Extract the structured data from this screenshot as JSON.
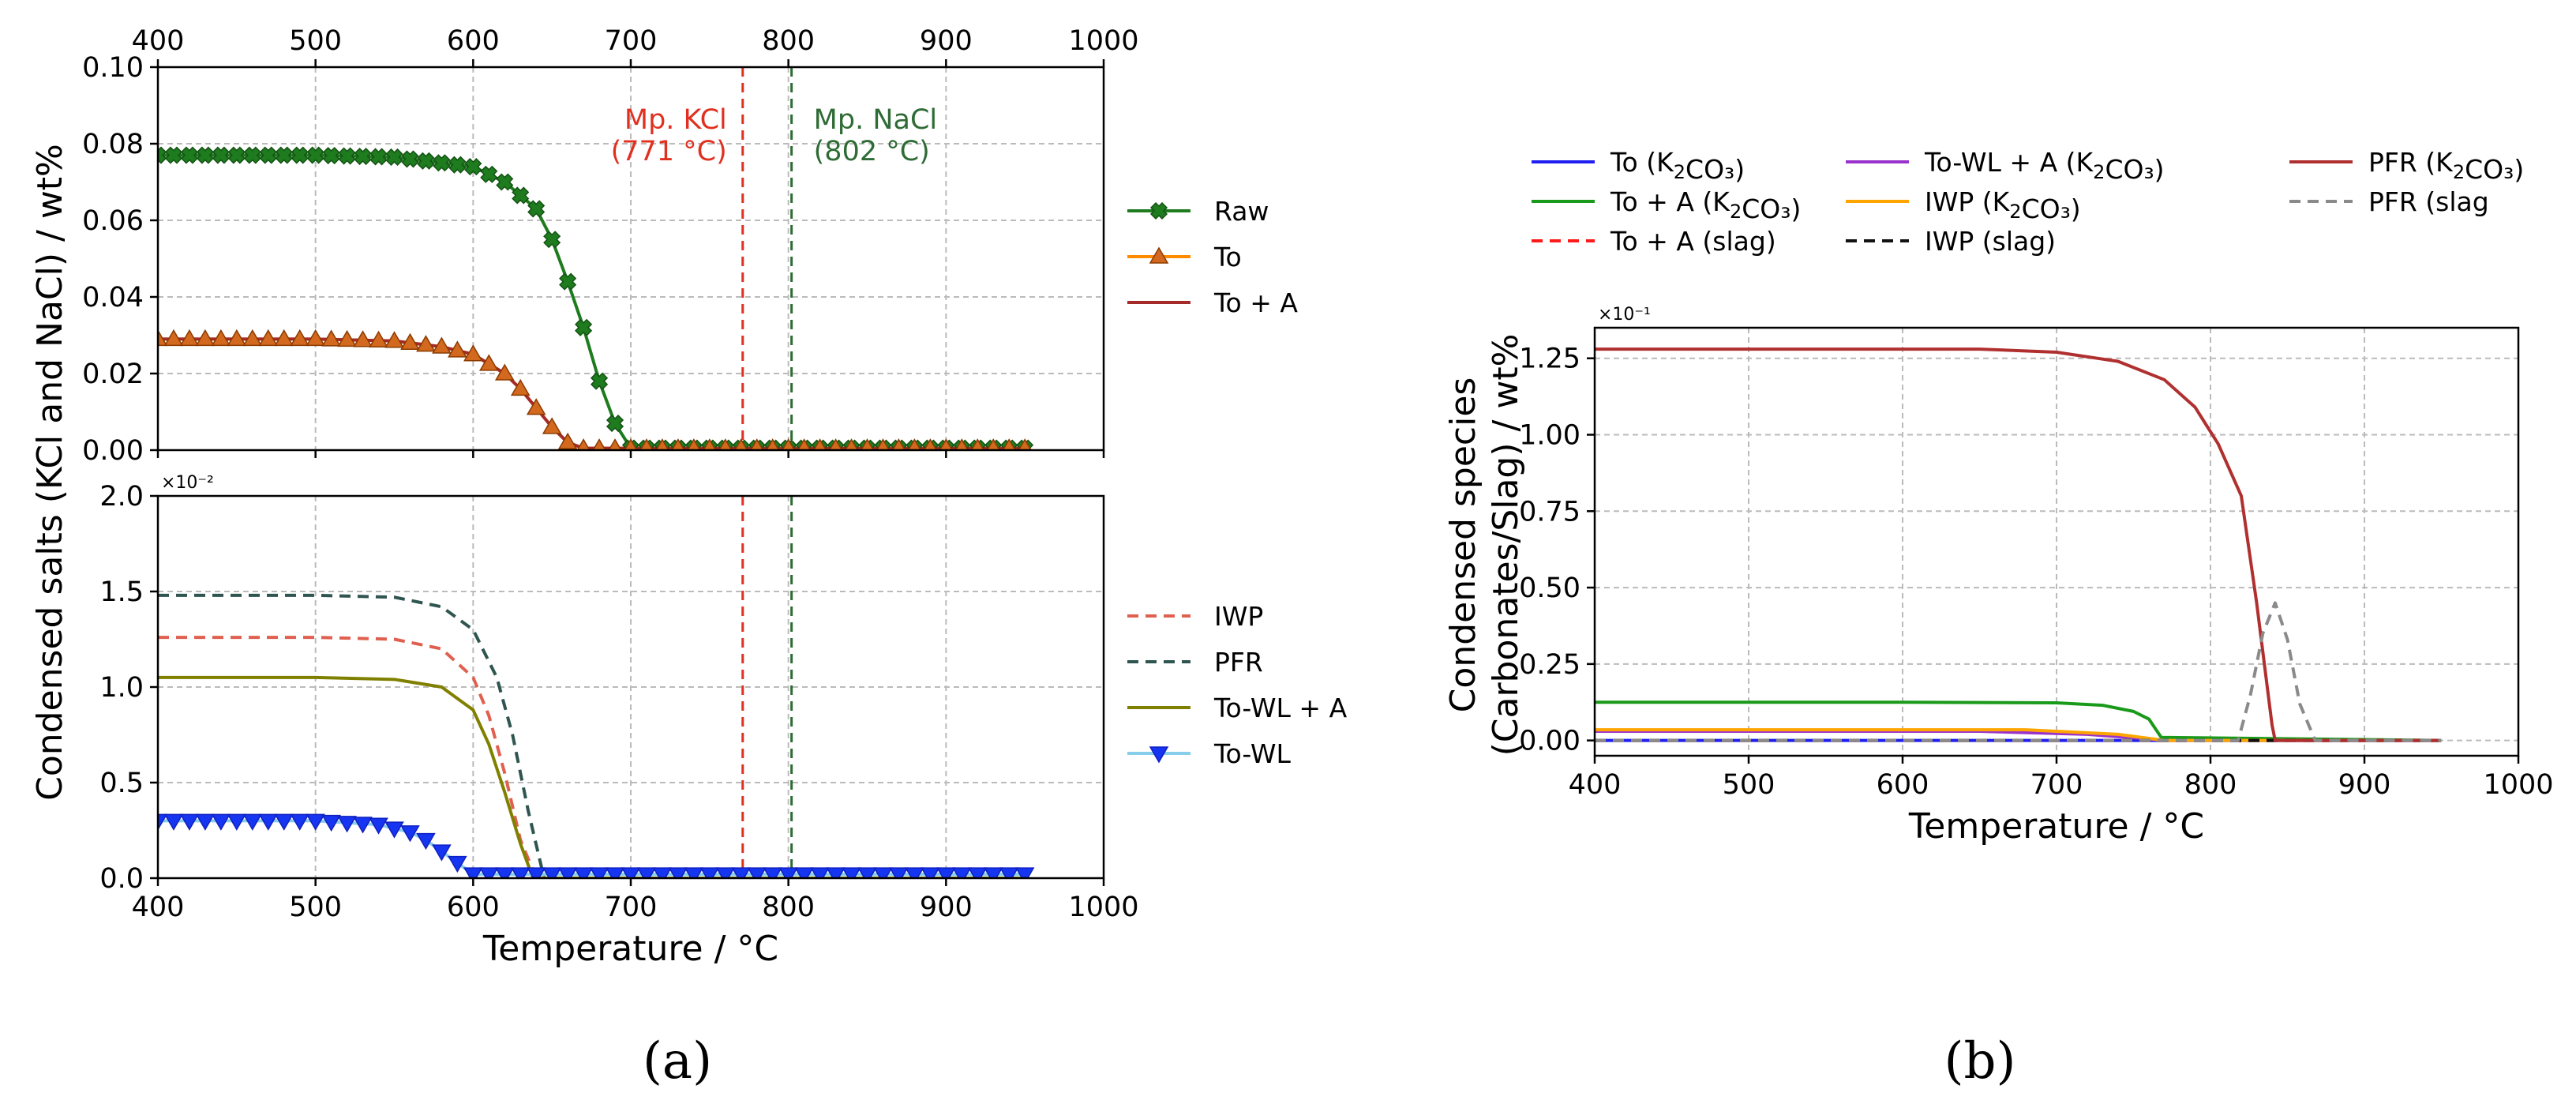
{
  "chart_data": [
    {
      "type": "line",
      "panel": "a-top",
      "title": "",
      "xlabel": "Temperature / °C",
      "ylabel": "Condensed salts (KCl and NaCl) / wt%",
      "xlim": [
        400,
        1000
      ],
      "ylim": [
        0,
        0.1
      ],
      "xticks": [
        "400",
        "500",
        "600",
        "700",
        "800",
        "900",
        "1000"
      ],
      "yticks": [
        "0.00",
        "0.02",
        "0.04",
        "0.06",
        "0.08",
        "0.10"
      ],
      "top_xticks": [
        "400",
        "500",
        "600",
        "700",
        "800",
        "900",
        "1000"
      ],
      "grid": true,
      "legend_position": "right",
      "vlines": [
        {
          "x": 771,
          "color": "#e03020",
          "label": "Mp. KCl",
          "sublabel": "(771 °C)"
        },
        {
          "x": 802,
          "color": "#2e6b35",
          "label": "Mp. NaCl",
          "sublabel": "(802 °C)"
        }
      ],
      "series": [
        {
          "name": "Raw",
          "color": "#1e7b1e",
          "style": "solid",
          "marker": "X",
          "x": [
            400,
            500,
            550,
            600,
            620,
            640,
            650,
            660,
            670,
            680,
            690,
            700,
            800,
            950
          ],
          "y": [
            0.077,
            0.077,
            0.0765,
            0.074,
            0.07,
            0.063,
            0.055,
            0.044,
            0.032,
            0.018,
            0.007,
            0.0005,
            0.0005,
            0.0005
          ]
        },
        {
          "name": "To",
          "color": "#ff8c00",
          "style": "solid",
          "marker": "^",
          "x": [
            400,
            500,
            550,
            580,
            600,
            620,
            630,
            640,
            650,
            660,
            670,
            700,
            800,
            950
          ],
          "y": [
            0.029,
            0.029,
            0.0285,
            0.027,
            0.025,
            0.02,
            0.016,
            0.011,
            0.006,
            0.002,
            0.0005,
            0.0005,
            0.0005,
            0.0005
          ]
        },
        {
          "name": "To + A",
          "color": "#a52a2a",
          "style": "solid",
          "marker": "none",
          "x": [
            400,
            500,
            550,
            580,
            600,
            620,
            630,
            640,
            650,
            660,
            670,
            700,
            800,
            950
          ],
          "y": [
            0.029,
            0.029,
            0.0285,
            0.027,
            0.025,
            0.02,
            0.016,
            0.011,
            0.006,
            0.002,
            0.0005,
            0.0005,
            0.0005,
            0.0005
          ]
        }
      ]
    },
    {
      "type": "line",
      "panel": "a-bottom",
      "title": "",
      "xlabel": "Temperature / °C",
      "ylabel": "",
      "y_multiplier": "×10⁻²",
      "xlim": [
        400,
        1000
      ],
      "ylim": [
        0,
        2.0
      ],
      "xticks": [
        "400",
        "500",
        "600",
        "700",
        "800",
        "900",
        "1000"
      ],
      "yticks": [
        "0.0",
        "0.5",
        "1.0",
        "1.5",
        "2.0"
      ],
      "grid": true,
      "legend_position": "right",
      "vlines": [
        {
          "x": 771,
          "color": "#e03020"
        },
        {
          "x": 802,
          "color": "#2e6b35"
        }
      ],
      "series": [
        {
          "name": "IWP",
          "color": "#e06050",
          "style": "dashed",
          "marker": "none",
          "x": [
            400,
            500,
            550,
            580,
            600,
            610,
            620,
            630,
            640,
            700,
            950
          ],
          "y": [
            1.26,
            1.26,
            1.25,
            1.2,
            1.05,
            0.85,
            0.55,
            0.2,
            0.0,
            0.0,
            0.0
          ]
        },
        {
          "name": "PFR",
          "color": "#2f5550",
          "style": "dashed",
          "marker": "none",
          "x": [
            400,
            500,
            550,
            580,
            600,
            615,
            625,
            635,
            645,
            700,
            950
          ],
          "y": [
            1.48,
            1.48,
            1.47,
            1.42,
            1.3,
            1.05,
            0.75,
            0.35,
            0.0,
            0.0,
            0.0
          ]
        },
        {
          "name": "To-WL + A",
          "color": "#808000",
          "style": "solid",
          "marker": "none",
          "x": [
            400,
            500,
            550,
            580,
            600,
            610,
            620,
            630,
            638,
            700,
            950
          ],
          "y": [
            1.05,
            1.05,
            1.04,
            1.0,
            0.88,
            0.7,
            0.45,
            0.18,
            0.0,
            0.0,
            0.0
          ]
        },
        {
          "name": "To-WL",
          "color": "#87ceeb",
          "marker_color": "#1535f0",
          "style": "solid",
          "marker": "v",
          "x": [
            400,
            500,
            540,
            560,
            570,
            580,
            590,
            600,
            700,
            800,
            950
          ],
          "y": [
            0.3,
            0.3,
            0.28,
            0.24,
            0.2,
            0.14,
            0.08,
            0.02,
            0.02,
            0.02,
            0.02
          ]
        }
      ]
    },
    {
      "type": "line",
      "panel": "b",
      "title": "",
      "xlabel": "Temperature / °C",
      "ylabel": "Condensed species",
      "ylabel2": "(Carbonates/Slag) / wt%",
      "y_multiplier": "×10⁻¹",
      "xlim": [
        400,
        1000
      ],
      "ylim": [
        -0.05,
        1.35
      ],
      "xticks": [
        "400",
        "500",
        "600",
        "700",
        "800",
        "900",
        "1000"
      ],
      "yticks": [
        "0.00",
        "0.25",
        "0.50",
        "0.75",
        "1.00",
        "1.25"
      ],
      "grid": true,
      "legend_position": "top",
      "series": [
        {
          "name": "To (K₂CO₃)",
          "color": "#1f1ff0",
          "style": "solid",
          "x": [
            400,
            950
          ],
          "y": [
            0.0,
            0.0
          ]
        },
        {
          "name": "To + A (K₂CO₃)",
          "color": "#1a9a1a",
          "style": "solid",
          "x": [
            400,
            600,
            700,
            730,
            750,
            760,
            768,
            950
          ],
          "y": [
            0.125,
            0.125,
            0.123,
            0.115,
            0.095,
            0.07,
            0.01,
            0.0
          ]
        },
        {
          "name": "To + A (slag)",
          "color": "#ff1a1a",
          "style": "dashed",
          "x": [
            400,
            950
          ],
          "y": [
            0.0,
            0.0
          ]
        },
        {
          "name": "To-WL + A (K₂CO₃)",
          "color": "#9932cc",
          "style": "solid",
          "x": [
            400,
            650,
            720,
            760,
            770,
            950
          ],
          "y": [
            0.03,
            0.03,
            0.02,
            0.005,
            0.0,
            0.0
          ]
        },
        {
          "name": "IWP (K₂CO₃)",
          "color": "#ffa500",
          "style": "solid",
          "x": [
            400,
            680,
            740,
            770,
            950
          ],
          "y": [
            0.035,
            0.035,
            0.02,
            0.0,
            0.0
          ]
        },
        {
          "name": "IWP (slag)",
          "color": "#111111",
          "style": "dashed",
          "x": [
            400,
            950
          ],
          "y": [
            0.0,
            0.0
          ]
        },
        {
          "name": "PFR (K₂CO₃)",
          "color": "#b03030",
          "style": "solid",
          "x": [
            400,
            650,
            700,
            740,
            770,
            790,
            805,
            820,
            830,
            840,
            842,
            950
          ],
          "y": [
            1.28,
            1.28,
            1.27,
            1.24,
            1.18,
            1.09,
            0.97,
            0.8,
            0.45,
            0.05,
            0.0,
            0.0
          ]
        },
        {
          "name": "PFR (slag",
          "color": "#8a8a8a",
          "style": "dashed",
          "x": [
            400,
            818,
            826,
            834,
            842,
            850,
            858,
            868,
            950
          ],
          "y": [
            0.0,
            0.0,
            0.15,
            0.35,
            0.45,
            0.33,
            0.12,
            0.0,
            0.0
          ]
        }
      ]
    }
  ],
  "labels": {
    "a": "(a)",
    "b": "(b)"
  }
}
